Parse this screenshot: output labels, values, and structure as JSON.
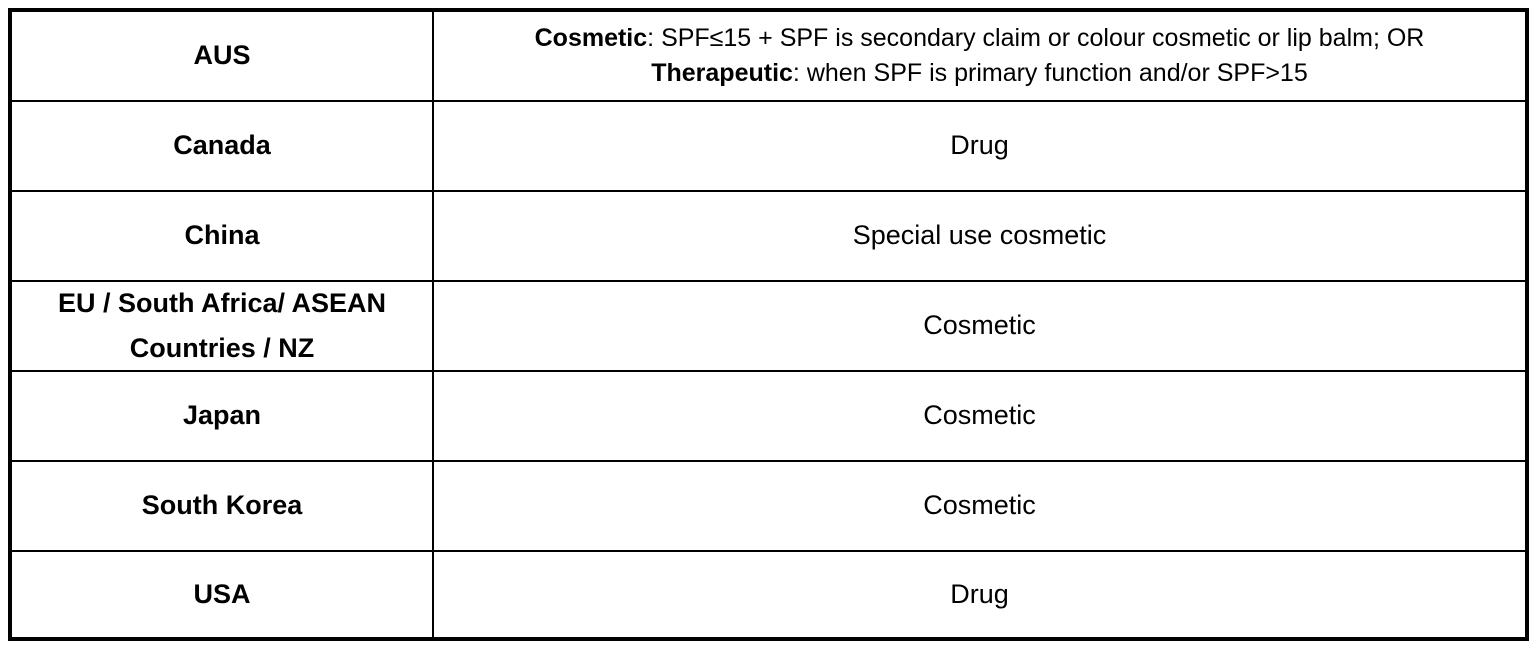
{
  "rows": [
    {
      "region": "AUS",
      "classification_lines": [
        {
          "bold": "Cosmetic",
          "rest": ": SPF≤15 + SPF is secondary claim or colour cosmetic or lip balm; OR"
        },
        {
          "bold": "Therapeutic",
          "rest": ": when SPF is primary function and/or SPF>15"
        }
      ]
    },
    {
      "region": "Canada",
      "classification": "Drug"
    },
    {
      "region": "China",
      "classification": "Special use cosmetic"
    },
    {
      "region_lines": [
        "EU / South Africa/ ASEAN",
        "Countries / NZ"
      ],
      "classification": "Cosmetic"
    },
    {
      "region": "Japan",
      "classification": "Cosmetic"
    },
    {
      "region": "South Korea",
      "classification": "Cosmetic"
    },
    {
      "region": "USA",
      "classification": "Drug"
    }
  ]
}
